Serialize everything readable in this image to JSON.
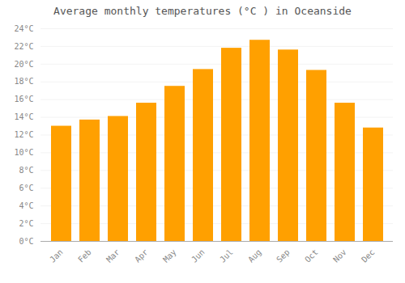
{
  "chart_data": {
    "type": "bar",
    "title": "Average monthly temperatures (°C ) in Oceanside",
    "categories": [
      "Jan",
      "Feb",
      "Mar",
      "Apr",
      "May",
      "Jun",
      "Jul",
      "Aug",
      "Sep",
      "Oct",
      "Nov",
      "Dec"
    ],
    "values": [
      13.0,
      13.7,
      14.1,
      15.6,
      17.5,
      19.4,
      21.8,
      22.7,
      21.6,
      19.3,
      15.6,
      12.8
    ],
    "color": "#FFA000",
    "ylim": [
      0,
      24
    ],
    "yticks": [
      {
        "value": 0,
        "label": "0°C"
      },
      {
        "value": 2,
        "label": "2°C"
      },
      {
        "value": 4,
        "label": "4°C"
      },
      {
        "value": 6,
        "label": "6°C"
      },
      {
        "value": 8,
        "label": "8°C"
      },
      {
        "value": 10,
        "label": "10°C"
      },
      {
        "value": 12,
        "label": "12°C"
      },
      {
        "value": 14,
        "label": "14°C"
      },
      {
        "value": 16,
        "label": "16°C"
      },
      {
        "value": 18,
        "label": "18°C"
      },
      {
        "value": 20,
        "label": "20°C"
      },
      {
        "value": 22,
        "label": "22°C"
      },
      {
        "value": 24,
        "label": "24°C"
      }
    ],
    "grid": true
  }
}
